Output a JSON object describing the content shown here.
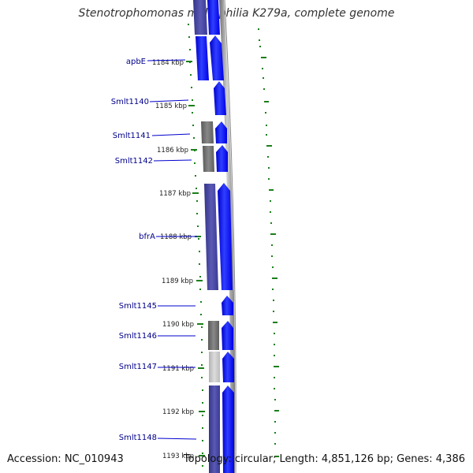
{
  "header": {
    "title": "Stenotrophomonas maltophilia K279a, complete genome"
  },
  "footer": {
    "accession": "Accession: NC_010943",
    "summary": "Topology: circular; Length: 4,851,126 bp; Genes: 4,386"
  },
  "colors": {
    "cds": "#0000ff",
    "cds_dark": "#3f3f9f",
    "gene_gray": "#6f6f6f",
    "gene_lightgray": "#c6c6c6",
    "backbone": "#8c8c8c",
    "gc_ticks": "#1a7f1a",
    "label_text": "#00008b",
    "label_line": "#0000cd"
  },
  "ticks": [
    {
      "label": "1184 kbp",
      "position_kbp": 1184
    },
    {
      "label": "1185 kbp",
      "position_kbp": 1185
    },
    {
      "label": "1186 kbp",
      "position_kbp": 1186
    },
    {
      "label": "1187 kbp",
      "position_kbp": 1187
    },
    {
      "label": "1188 kbp",
      "position_kbp": 1188
    },
    {
      "label": "1189 kbp",
      "position_kbp": 1189
    },
    {
      "label": "1190 kbp",
      "position_kbp": 1190
    },
    {
      "label": "1191 kbp",
      "position_kbp": 1191
    },
    {
      "label": "1192 kbp",
      "position_kbp": 1192
    },
    {
      "label": "1193 kbp",
      "position_kbp": 1193
    }
  ],
  "genes": [
    {
      "name": "apbE"
    },
    {
      "name": "Smlt1140"
    },
    {
      "name": "Smlt1141"
    },
    {
      "name": "Smlt1142"
    },
    {
      "name": "bfrA"
    },
    {
      "name": "Smlt1145"
    },
    {
      "name": "Smlt1146"
    },
    {
      "name": "Smlt1147"
    },
    {
      "name": "Smlt1148"
    }
  ]
}
